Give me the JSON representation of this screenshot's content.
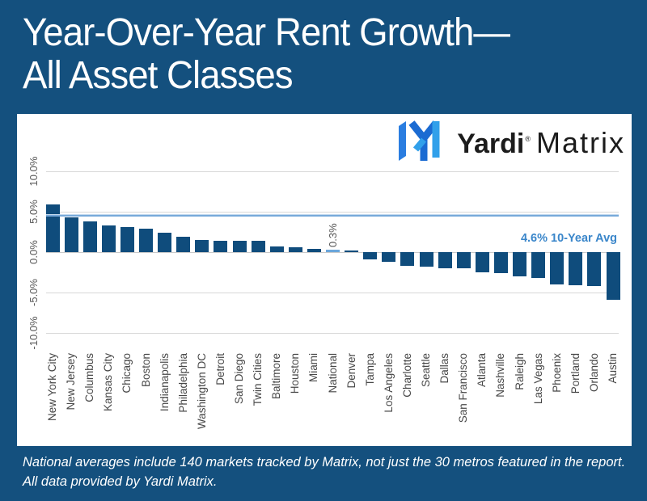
{
  "title": {
    "line1": "Year-Over-Year Rent Growth—",
    "line2": "All Asset Classes"
  },
  "logo": {
    "brand_bold": "Yardi",
    "registered": "®",
    "brand_light": "Matrix"
  },
  "chart_data": {
    "type": "bar",
    "title": "Year-Over-Year Rent Growth—All Asset Classes",
    "unit": "%",
    "categories": [
      "New York City",
      "New Jersey",
      "Columbus",
      "Kansas City",
      "Chicago",
      "Boston",
      "Indianapolis",
      "Philadelphia",
      "Washington DC",
      "Detroit",
      "San Diego",
      "Twin Cities",
      "Baltimore",
      "Houston",
      "Miami",
      "National",
      "Denver",
      "Tampa",
      "Los Angeles",
      "Charlotte",
      "Seattle",
      "Dallas",
      "San Francisco",
      "Atlanta",
      "Nashville",
      "Raleigh",
      "Las Vegas",
      "Phoenix",
      "Portland",
      "Orlando",
      "Austin"
    ],
    "values": [
      5.9,
      4.3,
      3.8,
      3.3,
      3.1,
      2.9,
      2.4,
      1.9,
      1.5,
      1.4,
      1.4,
      1.4,
      0.7,
      0.6,
      0.4,
      0.3,
      0.2,
      -0.9,
      -1.2,
      -1.7,
      -1.8,
      -2.0,
      -2.0,
      -2.5,
      -2.6,
      -3.0,
      -3.2,
      -4.0,
      -4.1,
      -4.2,
      -5.9
    ],
    "highlight_category": "National",
    "highlight_value_label": "0.3%",
    "avg_line": {
      "value": 4.6,
      "label": "4.6% 10-Year Avg"
    },
    "y_ticks": [
      "10.0%",
      "5.0%",
      "0.0%",
      "-5.0%",
      "-10.0%"
    ],
    "y_tick_values": [
      10,
      5,
      0,
      -5,
      -10
    ],
    "ylim": [
      -10,
      10
    ],
    "grid": true,
    "legend": "none",
    "colors": {
      "bar": "#0f4c7c",
      "highlight_bar": "#6aa6db",
      "avg_line": "#77a9da",
      "avg_label": "#3a86ca",
      "background": "#14507e",
      "plot_background": "#ffffff"
    }
  },
  "footnote": {
    "line1": "National averages include 140 markets tracked by Matrix, not just the 30 metros featured in the report.",
    "line2": "All data provided by Yardi Matrix."
  }
}
